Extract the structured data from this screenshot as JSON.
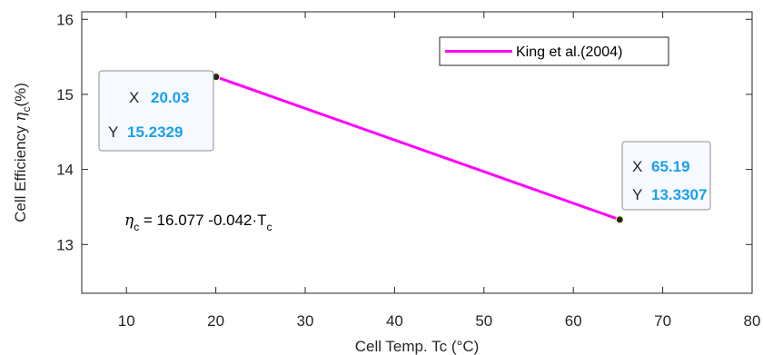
{
  "chart_data": {
    "type": "line",
    "xlabel": "Cell Temp. Tc (°C)",
    "ylabel": {
      "main": "Cell Efficiency ",
      "eta": "η",
      "sub": "c",
      "unit": "(%)"
    },
    "xlim": [
      5,
      80
    ],
    "ylim": [
      12.35,
      16.1
    ],
    "xticks": [
      10,
      20,
      30,
      40,
      50,
      60,
      70,
      80
    ],
    "yticks": [
      13,
      14,
      15,
      16
    ],
    "grid": false,
    "legend_position": "top-right",
    "series": [
      {
        "name": "King et al.(2004)",
        "color": "#FF00FF",
        "x": [
          20.03,
          65.19
        ],
        "y": [
          15.2329,
          13.3307
        ]
      }
    ],
    "datatips": [
      {
        "x_label": "X",
        "x_value": "20.03",
        "y_label": "Y",
        "y_value": "15.2329"
      },
      {
        "x_label": "X",
        "x_value": "65.19",
        "y_label": "Y",
        "y_value": "13.3307"
      }
    ],
    "equation": {
      "eta": "η",
      "sub": "c",
      "body": " = 16.077 -0.042·T",
      "tsub": "c"
    },
    "value_color": "#1A9FEF"
  }
}
